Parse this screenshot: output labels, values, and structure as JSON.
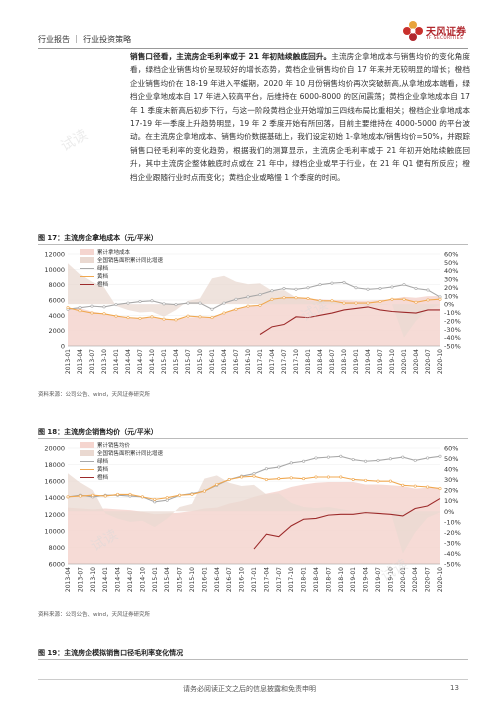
{
  "header": {
    "section": "行业报告",
    "category": "行业投资策略",
    "logo_name": "天风证券",
    "logo_sub": "TF SECURITIES"
  },
  "body": {
    "title": "销售口径看，主流房企毛利率或于 21 年初陆续触底回升。",
    "text": "主流房企拿地成本与销售均价的变化角度看，绿档企业销售均价呈现较好的增长态势，黄档企业销售均价自 17 年来并无较明显的增长；橙档企业销售均价在 18-19 年进入平缓期，2020 年 10 月份销售均价再次突破新高,从拿地成本端看，绿档企业拿地成本自 17 年进入较高平台，后维持在 6000-8000 的区间震荡；黄档企业拿地成本自 17 年 1 季度末新高后初步下行，与这一阶段黄档企业开始增加三四线布局比重相关；橙档企业拿地成本 17-19 年一季度上升趋势明显，19 年 2 季度开始有所回落，目前主要维持在 4000-5000 的平台波动。在主流房企拿地成本、销售均价数据基础上，我们设定初始 1-拿地成本/销售均价=50%，并跟踪销售口径毛利率的变化趋势，根据我们的测算显示，主流房企毛利率或于 21 年初开始陆续触底回升，其中主流房企整体触底时点或在 21 年中，绿档企业或早于行业，在 21 年 Q1 便有所反应；橙档企业跟随行业时点而变化；黄档企业或略慢 1 个季度的时间。"
  },
  "fig17": {
    "caption": "图 17：主流房企拿地成本（元/平米）",
    "source": "资料来源：公司公告、wind，天风证券研究所",
    "legend": [
      "累计拿地成本",
      "全国销售面积累计同比增速",
      "绿档",
      "黄档",
      "橙档"
    ]
  },
  "fig18": {
    "caption": "图 18：主流房企销售均价（元/平米）",
    "source": "资料来源：公司公告、wind，天风证券研究所",
    "legend": [
      "累计销售均价",
      "全国销售面积累计同比增速",
      "绿档",
      "黄档",
      "橙档"
    ]
  },
  "fig19": {
    "caption": "图 19：主流房企模拟销售口径毛利率变化情况"
  },
  "footer": {
    "text": "请务必阅读正文之后的信息披露和免责申明",
    "page": "13"
  },
  "watermark": "试读",
  "chart_data": [
    {
      "type": "line",
      "title": "图 17：主流房企拿地成本（元/平米）",
      "x": [
        "2013-01",
        "2013-04",
        "2013-07",
        "2013-10",
        "2014-01",
        "2014-04",
        "2014-07",
        "2014-10",
        "2015-01",
        "2015-04",
        "2015-07",
        "2015-10",
        "2016-01",
        "2016-04",
        "2016-07",
        "2016-10",
        "2017-01",
        "2017-04",
        "2017-07",
        "2017-10",
        "2018-01",
        "2018-04",
        "2018-07",
        "2018-10",
        "2019-01",
        "2019-04",
        "2019-07",
        "2019-10",
        "2020-01",
        "2020-04",
        "2020-07",
        "2020-10"
      ],
      "ylim": [
        0,
        12000
      ],
      "y2lim": [
        -50,
        60
      ],
      "y_ticks": [
        0,
        2000,
        4000,
        6000,
        8000,
        10000,
        12000
      ],
      "y2_ticks": [
        "-50%",
        "-40%",
        "-30%",
        "-20%",
        "-10%",
        "0%",
        "10%",
        "20%",
        "30%",
        "40%",
        "50%",
        "60%"
      ],
      "series": [
        {
          "name": "累计拿地成本",
          "values": [
            4900,
            4900,
            4500,
            4200,
            3900,
            3700,
            3600,
            3700,
            3500,
            3500,
            3700,
            3800,
            3800,
            4300,
            4900,
            5200,
            5400,
            6000,
            6300,
            6300,
            6200,
            6100,
            6000,
            6000,
            5900,
            5900,
            6000,
            6100,
            6400,
            6300,
            6500,
            6500
          ]
        },
        {
          "name": "全国销售面积累计同比增速",
          "values": [
            49,
            36,
            27,
            20,
            -2,
            -7,
            -10,
            -9,
            -15,
            -7,
            4,
            7,
            31,
            34,
            27,
            24,
            25,
            16,
            17,
            8,
            4,
            3,
            4,
            2,
            0,
            -2,
            -1,
            0,
            -40,
            -20,
            -6,
            -1
          ]
        },
        {
          "name": "绿档",
          "values": [
            4800,
            5000,
            5200,
            5100,
            5400,
            5600,
            5800,
            5900,
            5500,
            5400,
            5600,
            5600,
            4800,
            5600,
            6100,
            6400,
            6700,
            7200,
            7500,
            7400,
            7600,
            8000,
            8200,
            8300,
            7600,
            7400,
            7500,
            7700,
            8000,
            7500,
            7300,
            6400
          ]
        },
        {
          "name": "黄档",
          "values": [
            5000,
            4600,
            4300,
            4200,
            3900,
            3700,
            3600,
            3800,
            3500,
            3400,
            3900,
            3800,
            3700,
            4300,
            4800,
            5200,
            5300,
            6100,
            6300,
            6300,
            6200,
            5900,
            5900,
            5600,
            5600,
            5600,
            5800,
            6100,
            6100,
            5700,
            6000,
            6100
          ]
        },
        {
          "name": "橙档",
          "values": [
            null,
            null,
            null,
            null,
            null,
            null,
            null,
            null,
            null,
            null,
            null,
            null,
            null,
            null,
            null,
            null,
            1500,
            2500,
            2800,
            3800,
            3700,
            4000,
            4300,
            4700,
            4900,
            5100,
            4700,
            4500,
            4400,
            4300,
            4700,
            4700
          ]
        }
      ]
    },
    {
      "type": "line",
      "title": "图 18：主流房企销售均价（元/平米）",
      "x": [
        "2013-04",
        "2013-07",
        "2013-10",
        "2014-01",
        "2014-04",
        "2014-07",
        "2014-10",
        "2015-01",
        "2015-04",
        "2015-07",
        "2015-10",
        "2016-01",
        "2016-04",
        "2016-07",
        "2016-10",
        "2017-01",
        "2017-04",
        "2017-07",
        "2017-10",
        "2018-01",
        "2018-04",
        "2018-07",
        "2018-10",
        "2019-01",
        "2019-04",
        "2019-07",
        "2019-10",
        "2020-01",
        "2020-04",
        "2020-07",
        "2020-10"
      ],
      "ylim": [
        6000,
        20000
      ],
      "y2lim": [
        -50,
        60
      ],
      "y_ticks": [
        6000,
        8000,
        10000,
        12000,
        14000,
        16000,
        18000,
        20000
      ],
      "y2_ticks": [
        "-50%",
        "-40%",
        "-30%",
        "-20%",
        "-10%",
        "0%",
        "10%",
        "20%",
        "30%",
        "40%",
        "50%",
        "60%"
      ],
      "series": [
        {
          "name": "累计销售均价",
          "values": [
            12800,
            12700,
            12600,
            12700,
            12600,
            12500,
            12300,
            12000,
            12100,
            12200,
            12400,
            12700,
            12800,
            13300,
            13600,
            14100,
            14500,
            14800,
            15300,
            15600,
            15800,
            15900,
            15900,
            15900,
            15600,
            15600,
            15500,
            15400,
            15100,
            15200,
            15200
          ]
        },
        {
          "name": "全国销售面积累计同比增速",
          "values": [
            36,
            27,
            20,
            -2,
            -7,
            -10,
            -9,
            -15,
            -7,
            4,
            7,
            31,
            34,
            27,
            24,
            25,
            16,
            17,
            8,
            4,
            3,
            4,
            2,
            0,
            -2,
            -1,
            0,
            -40,
            -20,
            -6,
            -1
          ]
        },
        {
          "name": "绿档",
          "values": [
            14100,
            14300,
            14100,
            14300,
            14300,
            14200,
            14100,
            13500,
            13700,
            14300,
            14500,
            14800,
            15500,
            16200,
            16600,
            16900,
            17500,
            17700,
            18200,
            18400,
            18800,
            18900,
            19000,
            18600,
            18400,
            18500,
            18700,
            18900,
            18500,
            18800,
            19000
          ]
        },
        {
          "name": "黄档",
          "values": [
            14100,
            14200,
            14300,
            14200,
            14400,
            14400,
            14100,
            13800,
            14000,
            14300,
            14400,
            14800,
            15600,
            16200,
            16500,
            16600,
            16200,
            16300,
            16400,
            16300,
            16500,
            16500,
            16500,
            16200,
            16100,
            16000,
            16000,
            15500,
            15400,
            15300,
            15100
          ]
        },
        {
          "name": "橙档",
          "values": [
            null,
            null,
            null,
            null,
            null,
            null,
            null,
            null,
            null,
            null,
            null,
            null,
            null,
            null,
            null,
            7800,
            9600,
            9300,
            10600,
            11400,
            11500,
            11900,
            12000,
            12000,
            12200,
            12100,
            12000,
            11800,
            12700,
            13000,
            13900
          ]
        }
      ]
    }
  ]
}
